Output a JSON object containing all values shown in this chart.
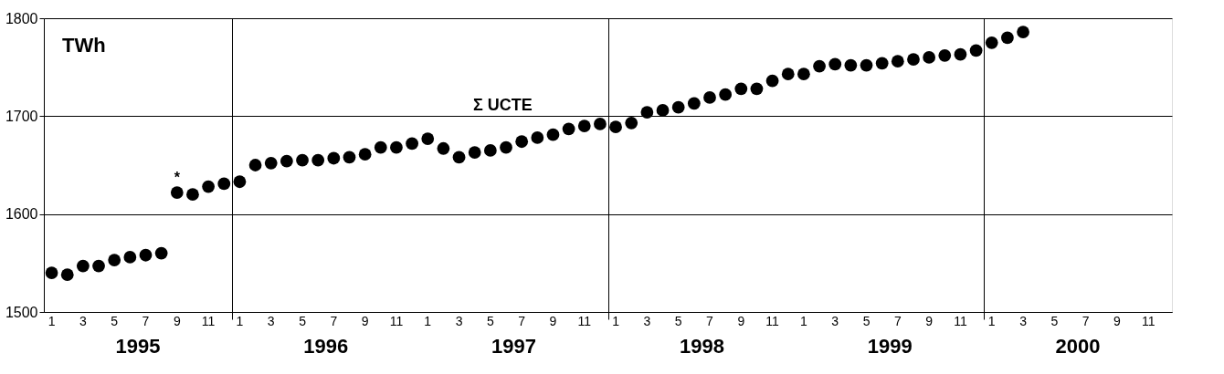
{
  "chart_data": {
    "type": "scatter",
    "title": "Σ UCTE",
    "ylabel": "TWh",
    "categories": [
      "1",
      null,
      "3",
      null,
      "5",
      null,
      "7",
      null,
      "9",
      null,
      "11",
      null,
      "1",
      null,
      "3",
      null,
      "5",
      null,
      "7",
      null,
      "9",
      null,
      "11",
      null,
      "1",
      null,
      "3",
      null,
      "5",
      null,
      "7",
      null,
      "9",
      null,
      "11",
      null,
      "1",
      null,
      "3",
      null,
      "5",
      null,
      "7",
      null,
      "9",
      null,
      "11",
      null,
      "1",
      null,
      "3",
      null,
      "5",
      null,
      "7",
      null,
      "9",
      null,
      "11",
      null,
      "1",
      null,
      "3",
      null,
      "5",
      null,
      "7",
      null,
      "9",
      null,
      "11",
      null
    ],
    "series": [
      {
        "color": "#000000",
        "values": [
          1540,
          1538,
          1547,
          1547,
          1553,
          1556,
          1558,
          1560,
          1622,
          1620,
          1628,
          1631,
          1633,
          1650,
          1652,
          1654,
          1655,
          1655,
          1657,
          1658,
          1661,
          1668,
          1668,
          1672,
          1677,
          1667,
          1658,
          1663,
          1665,
          1668,
          1674,
          1678,
          1681,
          1687,
          1690,
          1692,
          1689,
          1693,
          1704,
          1706,
          1709,
          1713,
          1719,
          1722,
          1728,
          1728,
          1736,
          1743,
          1743,
          1751,
          1753,
          1752,
          1752,
          1754,
          1756,
          1758,
          1760,
          1762,
          1763,
          1767,
          1775,
          1780,
          1786,
          null,
          null,
          null,
          null,
          null,
          null,
          null,
          null,
          null
        ]
      }
    ],
    "ylim": [
      1500,
      1800
    ],
    "yticks": [
      1500,
      1600,
      1700,
      1800
    ],
    "grid": true,
    "marker": "circle",
    "annotations": [
      "1995",
      "1996",
      "1997",
      "1998",
      "1999",
      "2000",
      {
        "text": "*",
        "x": "9",
        "y": 1622
      }
    ]
  }
}
